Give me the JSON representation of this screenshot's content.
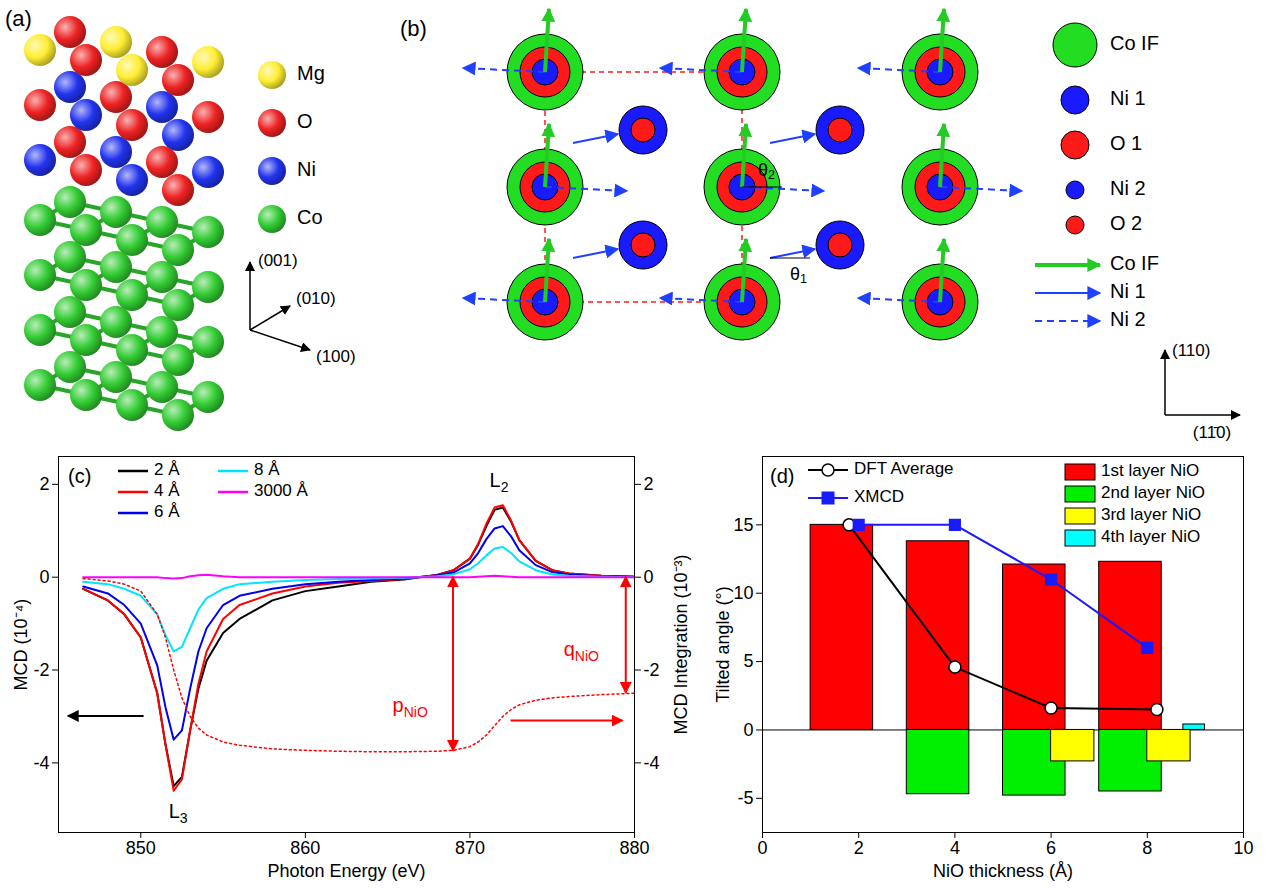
{
  "diagram_a": {
    "label": "(a)",
    "legend": [
      {
        "label": "Mg",
        "color": "#ffee33"
      },
      {
        "label": "O",
        "color": "#ee2222"
      },
      {
        "label": "Ni",
        "color": "#2233ee"
      },
      {
        "label": "Co",
        "color": "#33cc33"
      }
    ],
    "axes": [
      "(001)",
      "(010)",
      "(100)"
    ]
  },
  "diagram_b": {
    "label": "(b)",
    "legend": [
      {
        "label": "Co IF",
        "color": "#22dd22"
      },
      {
        "label": "Ni 1",
        "color": "#1a1aff"
      },
      {
        "label": "O 1",
        "color": "#ff1a1a"
      },
      {
        "label": "Ni 2",
        "color": "#1a1aff"
      },
      {
        "label": "O 2",
        "color": "#ff1a1a"
      }
    ],
    "arrow_legend": [
      {
        "label": "Co IF",
        "color": "#22cc22",
        "line_style": "solid"
      },
      {
        "label": "Ni 1",
        "color": "#2040ff",
        "line_style": "solid"
      },
      {
        "label": "Ni 2",
        "color": "#2040ff",
        "line_style": "dashed"
      }
    ],
    "angles": [
      {
        "text": "θ",
        "subscript": "2"
      },
      {
        "text": "θ",
        "subscript": "1"
      }
    ],
    "axes": [
      "(110)",
      "(11̄0)"
    ]
  },
  "chart_data": [
    {
      "type": "line",
      "label": "(c)",
      "x_label": "Photon Energy (eV)",
      "y_label": "MCD (10⁻⁴)",
      "y2_label": "MCD Integration (10⁻³)",
      "x": [
        846.5,
        848,
        849,
        850,
        851,
        851.5,
        852,
        852.5,
        853,
        853.5,
        854,
        855,
        856,
        858,
        860,
        862,
        864,
        866,
        868,
        869,
        870,
        870.5,
        871,
        871.5,
        872,
        872.5,
        873,
        874,
        875,
        876,
        878,
        880
      ],
      "xlim": [
        845,
        880
      ],
      "xticks": [
        850,
        860,
        870,
        880
      ],
      "ylim": [
        -5.5,
        2.6
      ],
      "yticks": [
        -4,
        -2,
        0,
        2
      ],
      "y2lim": [
        -5.5,
        2.6
      ],
      "y2ticks": [
        -4,
        -2,
        0,
        2
      ],
      "legend": "top-left",
      "series": [
        {
          "name": "2 Å",
          "color": "#000000",
          "values": [
            -0.25,
            -0.5,
            -0.8,
            -1.3,
            -2.5,
            -3.6,
            -4.5,
            -4.3,
            -3.3,
            -2.4,
            -1.8,
            -1.2,
            -0.9,
            -0.5,
            -0.3,
            -0.2,
            -0.1,
            -0.05,
            0.05,
            0.15,
            0.4,
            0.7,
            1.1,
            1.45,
            1.5,
            1.2,
            0.8,
            0.35,
            0.15,
            0.08,
            0.03,
            0.01
          ]
        },
        {
          "name": "4 Å",
          "color": "#ff0000",
          "values": [
            -0.25,
            -0.5,
            -0.8,
            -1.3,
            -2.5,
            -3.6,
            -4.6,
            -4.35,
            -3.3,
            -2.3,
            -1.6,
            -0.9,
            -0.6,
            -0.35,
            -0.2,
            -0.12,
            -0.08,
            -0.04,
            0.05,
            0.15,
            0.4,
            0.72,
            1.15,
            1.5,
            1.55,
            1.22,
            0.8,
            0.35,
            0.15,
            0.08,
            0.03,
            0.01
          ]
        },
        {
          "name": "6 Å",
          "color": "#0000ee",
          "values": [
            -0.2,
            -0.35,
            -0.6,
            -1,
            -1.9,
            -2.8,
            -3.5,
            -3.3,
            -2.4,
            -1.6,
            -1.1,
            -0.6,
            -0.4,
            -0.25,
            -0.15,
            -0.1,
            -0.06,
            -0.03,
            0.04,
            0.1,
            0.3,
            0.52,
            0.82,
            1.05,
            1.1,
            0.88,
            0.58,
            0.26,
            0.11,
            0.06,
            0.02,
            0.01
          ]
        },
        {
          "name": "8 Å",
          "color": "#00e5ff",
          "values": [
            -0.1,
            -0.15,
            -0.25,
            -0.4,
            -0.8,
            -1.25,
            -1.6,
            -1.5,
            -1.1,
            -0.7,
            -0.45,
            -0.25,
            -0.15,
            -0.1,
            -0.06,
            -0.04,
            -0.03,
            -0.01,
            0.02,
            0.06,
            0.17,
            0.3,
            0.47,
            0.62,
            0.65,
            0.52,
            0.34,
            0.15,
            0.06,
            0.03,
            0.01,
            0
          ]
        },
        {
          "name": "3000 Å",
          "color": "#ff00ff",
          "values": [
            0,
            0,
            0,
            0,
            0,
            -0.02,
            -0.03,
            -0.02,
            0.02,
            0.04,
            0.05,
            0.02,
            0,
            0,
            0,
            0,
            0,
            0,
            0,
            0,
            0,
            0.01,
            0.02,
            0.03,
            0.02,
            0.01,
            0,
            0,
            0,
            0,
            0,
            0
          ]
        },
        {
          "color": "#ff0000",
          "line_style": "dotted",
          "axis": "y2",
          "values": [
            -0.03,
            -0.08,
            -0.15,
            -0.3,
            -0.8,
            -1.3,
            -2,
            -2.6,
            -3,
            -3.25,
            -3.4,
            -3.55,
            -3.62,
            -3.7,
            -3.73,
            -3.75,
            -3.76,
            -3.76,
            -3.75,
            -3.73,
            -3.65,
            -3.55,
            -3.4,
            -3.2,
            -3,
            -2.85,
            -2.75,
            -2.65,
            -2.6,
            -2.57,
            -2.53,
            -2.5
          ]
        }
      ],
      "annotations": [
        {
          "text": "L",
          "subscript": "3",
          "x": 852.3,
          "y": -5.1,
          "color": "#000000"
        },
        {
          "text": "L",
          "subscript": "2",
          "x": 871.8,
          "y": 2.05,
          "color": "#000000"
        },
        {
          "text": "p",
          "subscript": "NiO",
          "x": 866.4,
          "y": -2.8,
          "axis": "y2",
          "color": "#ff0000"
        },
        {
          "text": "q",
          "subscript": "NiO",
          "x": 876.8,
          "y": -1.6,
          "axis": "y2",
          "color": "#ff0000"
        }
      ],
      "arrows": [
        {
          "x": [
            850.2,
            845.6
          ],
          "y": [
            -3,
            -3
          ],
          "color": "#000000",
          "marker": "end"
        },
        {
          "x": [
            872.5,
            879.3
          ],
          "y": [
            -3.1,
            -3.1
          ],
          "color": "#ff0000",
          "marker": "end",
          "axis": "y2"
        },
        {
          "x": [
            869,
            869
          ],
          "y": [
            0,
            -3.75
          ],
          "color": "#ff0000",
          "marker": "both",
          "axis": "y2"
        },
        {
          "x": [
            879.5,
            879.5
          ],
          "y": [
            0,
            -2.5
          ],
          "color": "#ff0000",
          "marker": "both",
          "axis": "y2"
        }
      ]
    },
    {
      "type": "bar",
      "label": "(d)",
      "x_label": "NiO thickness (Å)",
      "y_label": "Tilted angle (°)",
      "xlim": [
        0,
        10
      ],
      "xticks": [
        0,
        2,
        4,
        6,
        8,
        10
      ],
      "ylim": [
        -7.5,
        20
      ],
      "yticks": [
        -5,
        0,
        5,
        10,
        15
      ],
      "legend": "top",
      "series": [
        {
          "name": "1st layer NiO",
          "type": "bar",
          "color": "#ff0000",
          "x": [
            2,
            4,
            6,
            8
          ],
          "values": [
            15,
            13.8,
            12.1,
            12.3
          ]
        },
        {
          "name": "2nd layer NiO",
          "type": "bar",
          "color": "#00ee00",
          "x": [
            4,
            6,
            8
          ],
          "values": [
            -4.7,
            -4.8,
            -4.5
          ]
        },
        {
          "name": "3rd layer NiO",
          "type": "bar",
          "color": "#ffff00",
          "x": [
            6,
            8
          ],
          "values": [
            -2.3,
            -2.3
          ]
        },
        {
          "name": "4th layer NiO",
          "type": "bar",
          "color": "#00ffff",
          "x": [
            8
          ],
          "values": [
            0.4
          ]
        },
        {
          "name": "DFT Average",
          "type": "line",
          "color": "#000000",
          "marker": "open circle",
          "x": [
            1.8,
            4,
            6,
            8.2
          ],
          "values": [
            15,
            4.6,
            1.6,
            1.5
          ]
        },
        {
          "name": "XMCD",
          "type": "line",
          "color": "#1a1aff",
          "marker": "square",
          "x": [
            2,
            4,
            6,
            8
          ],
          "values": [
            15,
            15,
            11,
            6
          ]
        }
      ]
    }
  ]
}
